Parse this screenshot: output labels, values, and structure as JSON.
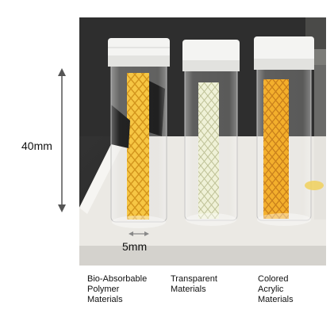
{
  "figure": {
    "height_label": "40mm",
    "width_label": "5mm",
    "captions": [
      "Bio-Absorbable\nPolymer\nMaterials",
      "Transparent\nMaterials",
      "Colored\nAcrylic\nMaterials"
    ]
  },
  "colors": {
    "background": "#ffffff",
    "photo_dark": "#262626",
    "board": "#e9e7e2",
    "cap": "#f4f4f2",
    "mesh_yellow": "#f2b41d",
    "mesh_clear": "#eef0cf",
    "mesh_orange": "#f0a51a"
  }
}
